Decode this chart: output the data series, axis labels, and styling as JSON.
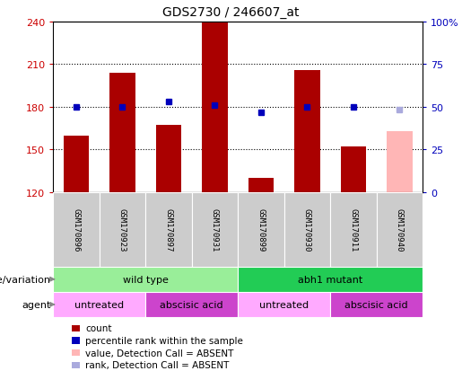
{
  "title": "GDS2730 / 246607_at",
  "samples": [
    "GSM170896",
    "GSM170923",
    "GSM170897",
    "GSM170931",
    "GSM170899",
    "GSM170930",
    "GSM170911",
    "GSM170940"
  ],
  "bar_values": [
    160,
    204,
    167,
    239,
    130,
    206,
    152,
    null
  ],
  "bar_color": "#aa0000",
  "absent_bar_value": 163,
  "absent_bar_color": "#ffb6b6",
  "absent_bar_index": 7,
  "rank_dots": [
    180,
    180,
    184,
    181,
    176,
    180,
    180,
    null
  ],
  "rank_dot_color": "#0000bb",
  "absent_rank_value": 178,
  "absent_rank_color": "#aaaadd",
  "absent_rank_index": 7,
  "ymin": 120,
  "ymax": 240,
  "yticks": [
    120,
    150,
    180,
    210,
    240
  ],
  "right_yticks": [
    0,
    25,
    50,
    75,
    100
  ],
  "gridlines": [
    150,
    180,
    210
  ],
  "genotype_groups": [
    {
      "label": "wild type",
      "start": 0,
      "end": 4,
      "color": "#99ee99"
    },
    {
      "label": "abh1 mutant",
      "start": 4,
      "end": 8,
      "color": "#22cc55"
    }
  ],
  "agent_groups": [
    {
      "label": "untreated",
      "start": 0,
      "end": 2,
      "color": "#ffaaff"
    },
    {
      "label": "abscisic acid",
      "start": 2,
      "end": 4,
      "color": "#cc44cc"
    },
    {
      "label": "untreated",
      "start": 4,
      "end": 6,
      "color": "#ffaaff"
    },
    {
      "label": "abscisic acid",
      "start": 6,
      "end": 8,
      "color": "#cc44cc"
    }
  ],
  "legend_items": [
    {
      "label": "count",
      "color": "#aa0000"
    },
    {
      "label": "percentile rank within the sample",
      "color": "#0000bb"
    },
    {
      "label": "value, Detection Call = ABSENT",
      "color": "#ffb6b6"
    },
    {
      "label": "rank, Detection Call = ABSENT",
      "color": "#aaaadd"
    }
  ],
  "bar_width": 0.55,
  "sample_label_row_color": "#cccccc",
  "ylabel_color": "#cc0000",
  "right_ylabel_color": "#0000bb",
  "background_color": "#ffffff",
  "title_fontsize": 10,
  "tick_fontsize": 8,
  "label_fontsize": 8,
  "sample_fontsize": 6.5,
  "legend_fontsize": 7.5
}
